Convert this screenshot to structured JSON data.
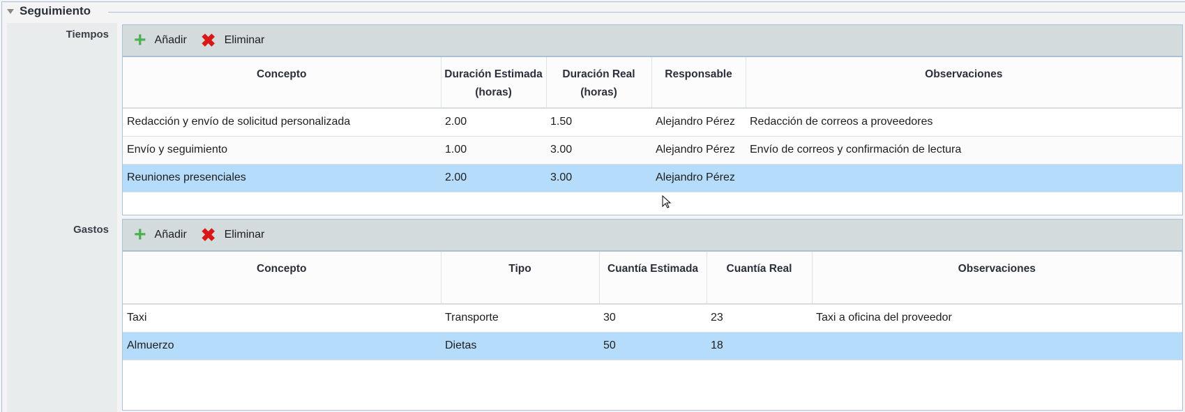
{
  "section": {
    "title": "Seguimiento"
  },
  "tiempos": {
    "label": "Tiempos",
    "toolbar": {
      "add": "Añadir",
      "delete": "Eliminar"
    },
    "columns": [
      "Concepto",
      "Duración Estimada (horas)",
      "Duración Real (horas)",
      "Responsable",
      "Observaciones"
    ],
    "rows": [
      [
        "Redacción y envío de solicitud personalizada",
        "2.00",
        "1.50",
        "Alejandro Pérez",
        "Redacción de correos a proveedores"
      ],
      [
        "Envío y seguimiento",
        "1.00",
        "3.00",
        "Alejandro Pérez",
        "Envío de correos y confirmación de lectura"
      ],
      [
        "Reuniones presenciales",
        "2.00",
        "3.00",
        "Alejandro Pérez",
        ""
      ]
    ],
    "selected_row": 2
  },
  "gastos": {
    "label": "Gastos",
    "toolbar": {
      "add": "Añadir",
      "delete": "Eliminar"
    },
    "columns": [
      "Concepto",
      "Tipo",
      "Cuantía Estimada",
      "Cuantía Real",
      "Observaciones"
    ],
    "rows": [
      [
        "Taxi",
        "Transporte",
        "30",
        "23",
        "Taxi a oficina del proveedor"
      ],
      [
        "Almuerzo",
        "Dietas",
        "50",
        "18",
        ""
      ]
    ],
    "selected_row": 1
  },
  "colors": {
    "selection": "#b6dcfb",
    "toolbar": "#d3dbdd",
    "add_icon": "#4caf50",
    "delete_icon": "#d81818"
  }
}
